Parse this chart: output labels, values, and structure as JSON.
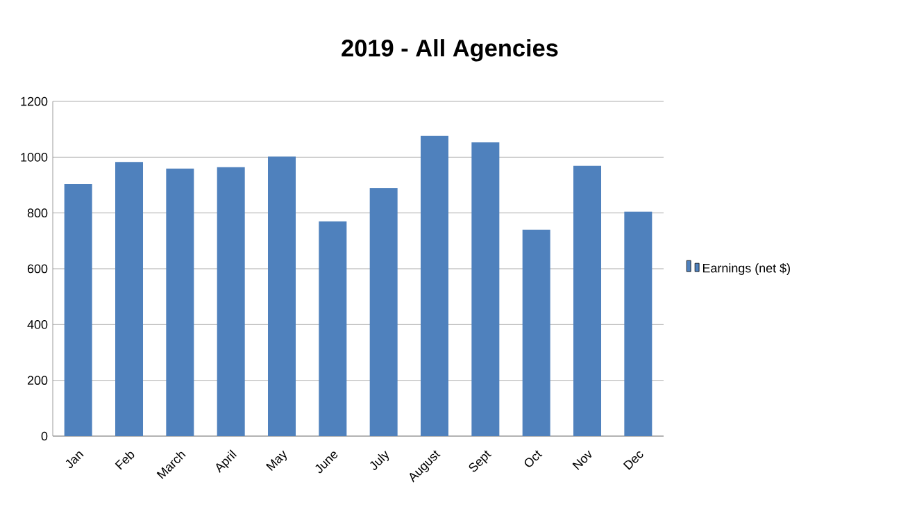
{
  "chart_data": {
    "type": "bar",
    "title": "2019 - All Agencies",
    "categories": [
      "Jan",
      "Feb",
      "March",
      "April",
      "May",
      "June",
      "July",
      "August",
      "Sept",
      "Oct",
      "Nov",
      "Dec"
    ],
    "series": [
      {
        "name": "Earnings (net $)",
        "color": "#4f81bd",
        "values": [
          904,
          983,
          959,
          964,
          1002,
          770,
          889,
          1076,
          1053,
          740,
          969,
          805
        ]
      }
    ],
    "ylim": [
      0,
      1200
    ],
    "yticks": [
      0,
      200,
      400,
      600,
      800,
      1000,
      1200
    ],
    "grid": "y",
    "legend": "right"
  }
}
